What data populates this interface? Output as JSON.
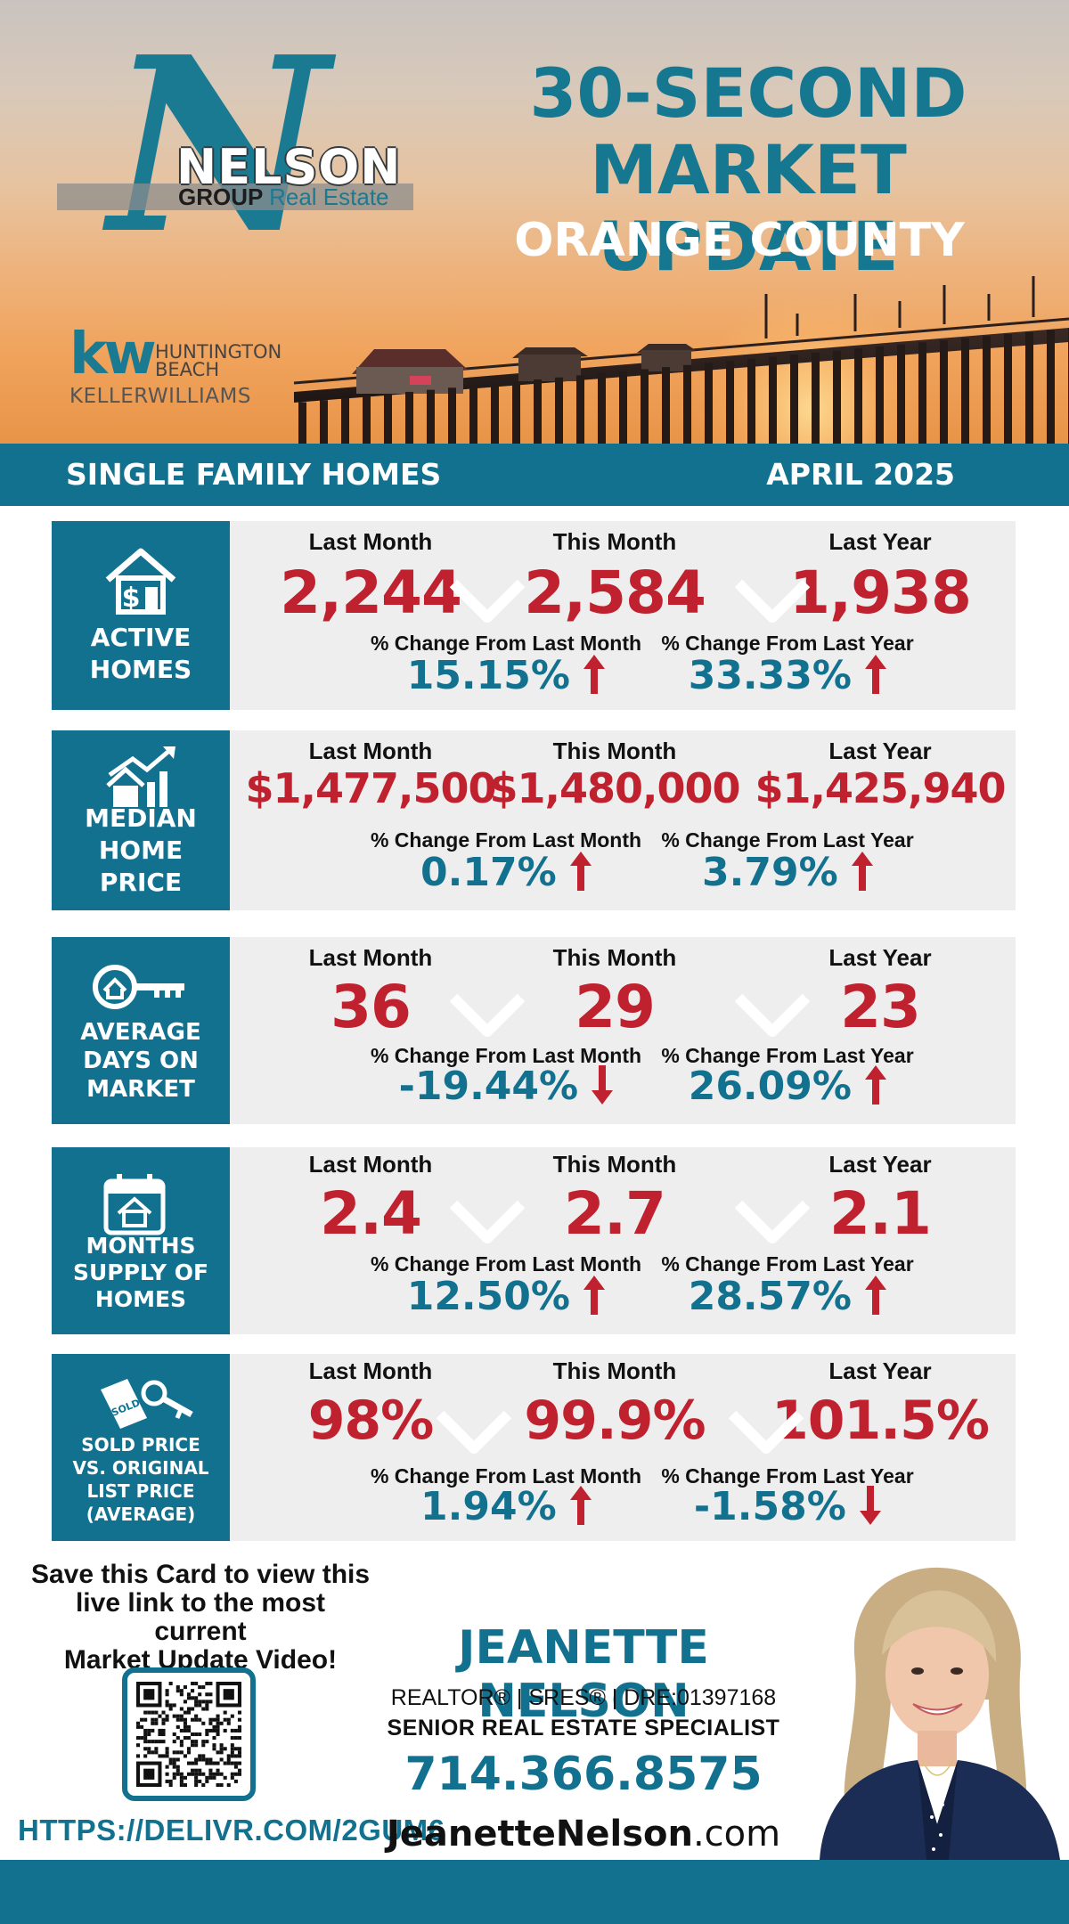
{
  "header": {
    "logo": {
      "nelson": "NELSON",
      "group": "GROUP",
      "real_estate": "Real Estate"
    },
    "kw": {
      "mark": "kw",
      "line1": "HUNTINGTON",
      "line2": "BEACH",
      "keller": "KELLER",
      "williams": "WILLIAMS"
    },
    "title_line1": "30-SECOND",
    "title_line2": "MARKET UPDATE",
    "county": "ORANGE COUNTY"
  },
  "band": {
    "left": "SINGLE FAMILY HOMES",
    "right": "APRIL 2025"
  },
  "column_labels": {
    "last_month": "Last Month",
    "this_month": "This Month",
    "last_year": "Last Year"
  },
  "change_labels": {
    "from_last_month": "% Change From Last Month",
    "from_last_year": "% Change From Last Year"
  },
  "stats": [
    {
      "label": [
        "ACTIVE",
        "HOMES"
      ],
      "last_month": "2,244",
      "this_month": "2,584",
      "last_year": "1,938",
      "chg_month": "15.15%",
      "chg_month_dir": "up",
      "chg_year": "33.33%",
      "chg_year_dir": "up"
    },
    {
      "label": [
        "MEDIAN",
        "HOME",
        "PRICE"
      ],
      "last_month": "$1,477,500",
      "this_month": "$1,480,000",
      "last_year": "$1,425,940",
      "chg_month": "0.17%",
      "chg_month_dir": "up",
      "chg_year": "3.79%",
      "chg_year_dir": "up"
    },
    {
      "label": [
        "AVERAGE",
        "DAYS ON",
        "MARKET"
      ],
      "last_month": "36",
      "this_month": "29",
      "last_year": "23",
      "chg_month": "-19.44%",
      "chg_month_dir": "down",
      "chg_year": "26.09%",
      "chg_year_dir": "up"
    },
    {
      "label": [
        "MONTHS",
        "SUPPLY OF",
        "HOMES"
      ],
      "last_month": "2.4",
      "this_month": "2.7",
      "last_year": "2.1",
      "chg_month": "12.50%",
      "chg_month_dir": "up",
      "chg_year": "28.57%",
      "chg_year_dir": "up"
    },
    {
      "label": [
        "SOLD PRICE",
        "VS. ORIGINAL",
        "LIST PRICE",
        "(AVERAGE)"
      ],
      "tag_text": "SOLD",
      "last_month": "98%",
      "this_month": "99.9%",
      "last_year": "101.5%",
      "chg_month": "1.94%",
      "chg_month_dir": "up",
      "chg_year": "-1.58%",
      "chg_year_dir": "down"
    }
  ],
  "footer": {
    "save_line1": "Save this Card to view this",
    "save_line2": "live link to the most current",
    "save_line3": "Market Update Video!",
    "url": "HTTPS://DELIVR.COM/2GUM6",
    "agent_name": "JEANETTE NELSON",
    "credentials": "REALTOR®  |  SRES®  |  DRE:01397168",
    "title": "SENIOR REAL ESTATE SPECIALIST",
    "phone": "714.366.8575",
    "site_name": "JeanetteNelson",
    "site_tld": ".com"
  },
  "colors": {
    "teal": "#137190",
    "red": "#c0212e",
    "panel": "#eeeeee"
  },
  "icons": [
    "house-dollar-icon",
    "house-growth-chart-icon",
    "house-key-icon",
    "calendar-house-icon",
    "sold-tag-key-icon",
    "arrow-up-icon",
    "arrow-down-icon",
    "chevron-down-icon",
    "qr-code-icon"
  ]
}
